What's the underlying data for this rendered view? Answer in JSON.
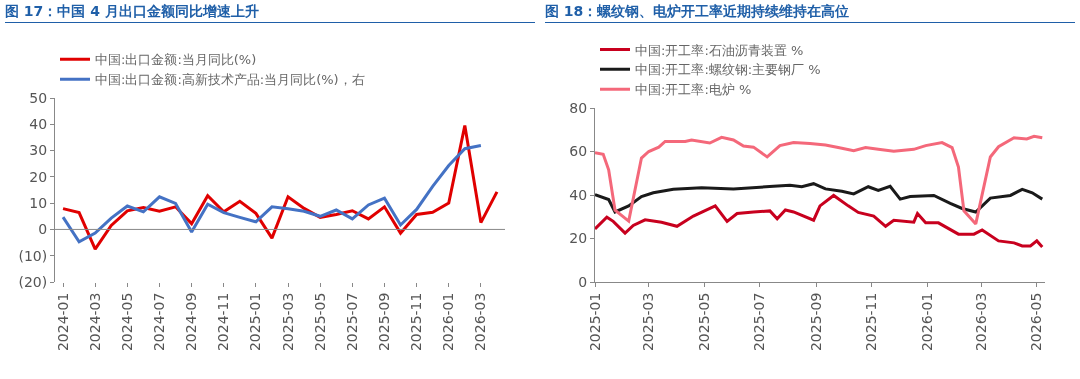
{
  "chart_data": [
    {
      "type": "line",
      "title": "图 17：中国 4 月出口金额同比增速上升",
      "legend": "top left",
      "grid": false,
      "categories": [
        "2024-01",
        null,
        "2024-03",
        null,
        "2024-05",
        null,
        "2024-07",
        null,
        "2024-09",
        null,
        "2024-11",
        null,
        "2025-01",
        null,
        "2025-03",
        null,
        "2025-05",
        null,
        "2025-07",
        null,
        "2025-09",
        null,
        "2025-11",
        null,
        "2026-01",
        null,
        "2026-03",
        null
      ],
      "ref_lines": [
        {
          "axis": "y",
          "value": 0,
          "color": "#888888"
        }
      ],
      "ylim": [
        -20,
        50
      ],
      "yticks": [
        {
          "value": -20,
          "label": "(20)"
        },
        {
          "value": -10,
          "label": "(10)"
        },
        0,
        10,
        20,
        30,
        40,
        50
      ],
      "series": [
        {
          "name": "中国:出口金额:当月同比(%)",
          "color": "#e00000",
          "values": [
            7.9,
            6.4,
            -7.5,
            1.5,
            7.1,
            8.3,
            6.9,
            8.6,
            2.2,
            12.8,
            6.7,
            10.7,
            6.1,
            -3.3,
            12.4,
            8,
            4.6,
            5.7,
            7.1,
            4,
            8.6,
            -1.4,
            5.7,
            6.5,
            10,
            39.5,
            2.6,
            14.3
          ]
        },
        {
          "name": "中国:出口金额:高新技术产品:当月同比(%)，右",
          "color": "#4472c4",
          "values": [
            4.7,
            -4.7,
            -1.4,
            4.3,
            8.9,
            6.7,
            12.4,
            9.9,
            -1,
            9.6,
            6.4,
            4.6,
            2.9,
            8.6,
            7.9,
            6.9,
            5,
            7.4,
            4,
            9.3,
            11.9,
            1.7,
            7.6,
            16.4,
            24.3,
            30.7,
            31.9,
            null
          ]
        }
      ]
    },
    {
      "type": "line",
      "title": "图 18：螺纹钢、电炉开工率近期持续维持在高位",
      "legend": "top left",
      "grid": false,
      "xlim": [
        "2025-01-01",
        "2026-05-10"
      ],
      "xticks": [
        {
          "value": "2025-01-01",
          "label": "2025-01"
        },
        {
          "value": "2025-03-01",
          "label": "2025-03"
        },
        {
          "value": "2025-05-01",
          "label": "2025-05"
        },
        {
          "value": "2025-07-01",
          "label": "2025-07"
        },
        {
          "value": "2025-09-01",
          "label": "2025-09"
        },
        {
          "value": "2025-11-01",
          "label": "2025-11"
        },
        {
          "value": "2026-01-01",
          "label": "2026-01"
        },
        {
          "value": "2026-03-01",
          "label": "2026-03"
        },
        {
          "value": "2026-05-01",
          "label": "2026-05"
        }
      ],
      "ylim": [
        0,
        80
      ],
      "yticks": [
        0,
        20,
        40,
        60,
        80
      ],
      "series": [
        {
          "name": "中国:开工率:石油沥青装置 %",
          "color": "#c8001e",
          "x": [
            "2025-01-01",
            "2025-01-14",
            "2025-01-21",
            "2025-02-03",
            "2025-02-12",
            "2025-02-25",
            "2025-03-15",
            "2025-04-01",
            "2025-04-19",
            "2025-05-13",
            "2025-05-26",
            "2025-06-06",
            "2025-06-24",
            "2025-07-12",
            "2025-07-20",
            "2025-07-29",
            "2025-08-07",
            "2025-08-29",
            "2025-09-05",
            "2025-09-20",
            "2025-10-06",
            "2025-10-17",
            "2025-11-03",
            "2025-11-16",
            "2025-11-25",
            "2025-12-17",
            "2025-12-21",
            "2025-12-30",
            "2026-01-13",
            "2026-02-04",
            "2026-02-21",
            "2026-03-02",
            "2026-03-20",
            "2026-04-06",
            "2026-04-15",
            "2026-04-24",
            "2026-05-01",
            "2026-05-07"
          ],
          "values": [
            24.4,
            29.8,
            27.9,
            22.5,
            26,
            28.6,
            27.5,
            25.6,
            30.3,
            35,
            27.9,
            31.5,
            32.2,
            32.7,
            29.1,
            33.1,
            32.2,
            28.4,
            35,
            39.8,
            35,
            32,
            30.3,
            25.6,
            28.4,
            27.5,
            31.5,
            27.2,
            27.2,
            22,
            22,
            23.9,
            18.9,
            18,
            16.6,
            16.6,
            18.9,
            16.1
          ]
        },
        {
          "name": "中国:开工率:螺纹钢:主要钢厂 %",
          "color": "#1a1a1a",
          "x": [
            "2025-01-01",
            "2025-01-16",
            "2025-01-23",
            "2025-02-07",
            "2025-02-21",
            "2025-03-06",
            "2025-03-28",
            "2025-04-28",
            "2025-06-02",
            "2025-07-16",
            "2025-08-03",
            "2025-08-16",
            "2025-08-29",
            "2025-09-11",
            "2025-09-29",
            "2025-10-12",
            "2025-10-28",
            "2025-11-08",
            "2025-11-21",
            "2025-12-02",
            "2025-12-13",
            "2026-01-08",
            "2026-01-26",
            "2026-02-08",
            "2026-02-23",
            "2026-03-11",
            "2026-04-02",
            "2026-04-15",
            "2026-04-26",
            "2026-05-07"
          ],
          "values": [
            40.2,
            37.9,
            32.2,
            35,
            39.3,
            41,
            42.6,
            43.3,
            42.8,
            44,
            44.5,
            43.8,
            45.2,
            42.8,
            41.7,
            40.5,
            43.8,
            42.1,
            44,
            38.1,
            39.3,
            39.8,
            36.2,
            33.8,
            32.2,
            38.6,
            39.8,
            42.6,
            41,
            38.1
          ]
        },
        {
          "name": "中国:开工率:电炉 %",
          "color": "#f4687a",
          "x": [
            "2025-01-01",
            "2025-01-10",
            "2025-01-16",
            "2025-01-23",
            "2025-02-07",
            "2025-02-21",
            "2025-03-01",
            "2025-03-12",
            "2025-03-19",
            "2025-04-10",
            "2025-04-17",
            "2025-05-07",
            "2025-05-20",
            "2025-06-02",
            "2025-06-13",
            "2025-06-24",
            "2025-07-09",
            "2025-07-23",
            "2025-08-07",
            "2025-08-25",
            "2025-09-11",
            "2025-09-25",
            "2025-10-12",
            "2025-10-25",
            "2025-11-08",
            "2025-11-25",
            "2025-12-17",
            "2025-12-30",
            "2026-01-17",
            "2026-01-28",
            "2026-02-04",
            "2026-02-10",
            "2026-02-23",
            "2026-03-11",
            "2026-03-20",
            "2026-04-06",
            "2026-04-20",
            "2026-04-28",
            "2026-05-07"
          ],
          "values": [
            59.4,
            58.7,
            51.6,
            33,
            28,
            57,
            60,
            62,
            64.6,
            64.6,
            65.3,
            63.9,
            66.5,
            65.3,
            62.5,
            62,
            57.5,
            62.7,
            64.1,
            63.7,
            63,
            61.8,
            60.4,
            61.8,
            61,
            60.1,
            61,
            62.7,
            64.1,
            61.8,
            52.8,
            32.7,
            26.7,
            57.5,
            62.2,
            66.3,
            65.8,
            67,
            66.3
          ]
        }
      ]
    }
  ]
}
